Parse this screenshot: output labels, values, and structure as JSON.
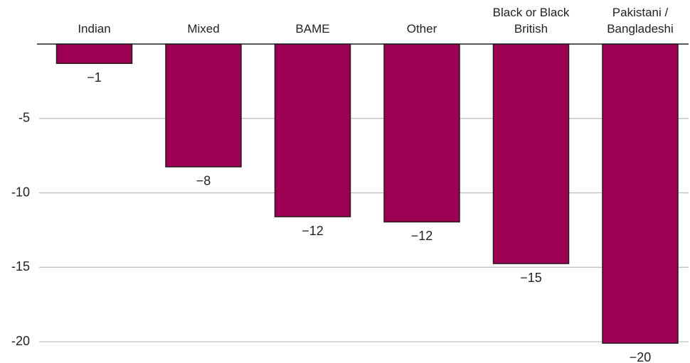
{
  "chart_data": {
    "type": "bar",
    "categories": [
      "Indian",
      "Mixed",
      "BAME",
      "Other",
      "Black or Black British",
      "Pakistani / Bangladeshi"
    ],
    "values": [
      -1.3,
      -8.25,
      -11.6,
      -11.95,
      -14.75,
      -20.1
    ],
    "value_labels": [
      "−1",
      "−8",
      "−12",
      "−12",
      "−15",
      "−20"
    ],
    "color": "#9b0052",
    "ylim": [
      -21,
      0
    ],
    "yticks": [
      -5,
      -10,
      -15,
      -20
    ],
    "grid": true
  }
}
